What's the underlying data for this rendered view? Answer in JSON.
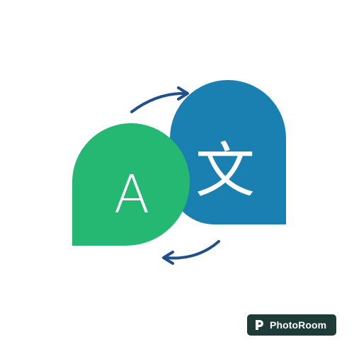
{
  "icon": {
    "latin_glyph": "A",
    "cjk_glyph": "文",
    "icon_names": [
      "translate-icon",
      "arrow-right-icon",
      "arrow-left-icon",
      "chat-bubble-icon"
    ]
  },
  "colors": {
    "background": "#ffffff",
    "green_bubble": "#25b873",
    "blue_bubble": "#1a7fb1",
    "arrows": "#1f4f8f",
    "glyph": "#ffffff",
    "watermark_bg": "#1f3b38"
  },
  "watermark": {
    "label": "PhotoRoom"
  }
}
